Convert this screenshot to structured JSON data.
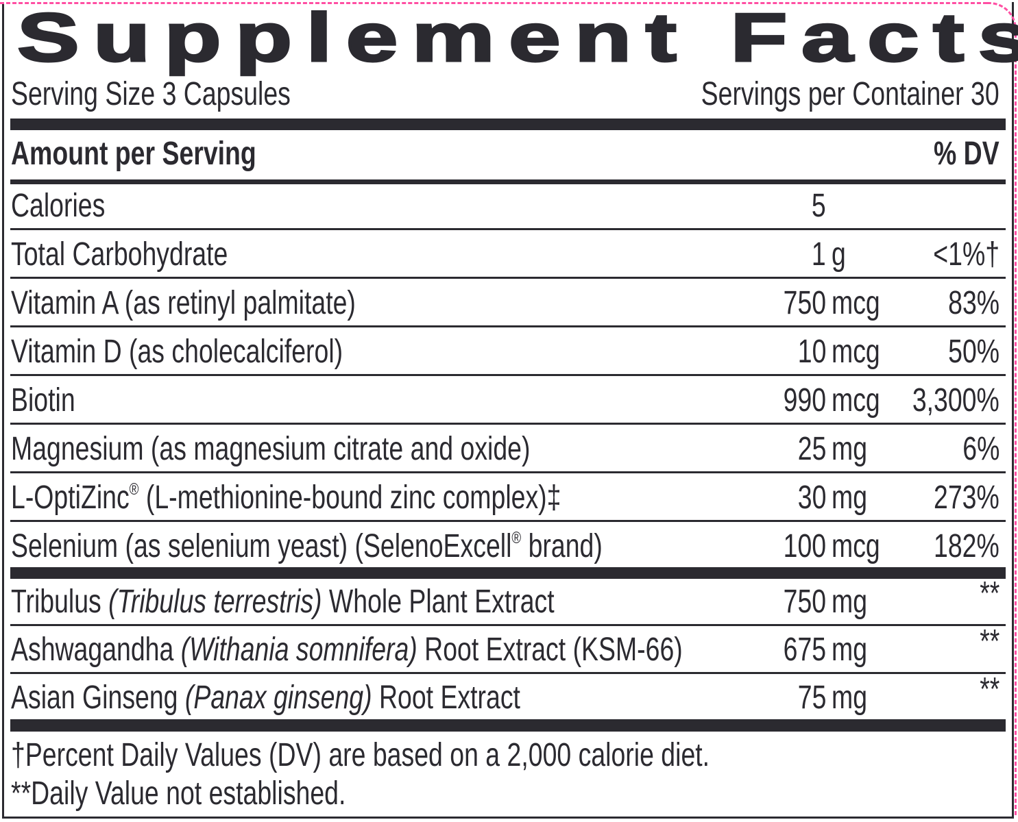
{
  "title": "Supplement Facts",
  "serving_size": "Serving Size 3 Capsules",
  "servings_per_container": "Servings per Container 30",
  "amount_header": "Amount per Serving",
  "dv_header": "% DV",
  "colors": {
    "ink": "#2b2a30",
    "dieline": "#ff4fa3"
  },
  "nutrients": [
    {
      "name": [
        {
          "t": "Calories"
        }
      ],
      "num": "5",
      "unit": "",
      "dv": ""
    },
    {
      "name": [
        {
          "t": "Total Carbohydrate"
        }
      ],
      "num": "1",
      "unit": "g",
      "dv": "<1%†"
    },
    {
      "name": [
        {
          "t": "Vitamin A (as retinyl palmitate)"
        }
      ],
      "num": "750",
      "unit": "mcg",
      "dv": "83%"
    },
    {
      "name": [
        {
          "t": "Vitamin D (as cholecalciferol)"
        }
      ],
      "num": "10",
      "unit": "mcg",
      "dv": "50%"
    },
    {
      "name": [
        {
          "t": "Biotin"
        }
      ],
      "num": "990",
      "unit": "mcg",
      "dv": "3,300%"
    },
    {
      "name": [
        {
          "t": "Magnesium (as magnesium citrate and oxide)"
        }
      ],
      "num": "25",
      "unit": "mg",
      "dv": "6%"
    },
    {
      "name": [
        {
          "t": "L-OptiZinc"
        },
        {
          "t": "®",
          "sup": true
        },
        {
          "t": " (L-methionine-bound zinc complex)‡"
        }
      ],
      "num": "30",
      "unit": "mg",
      "dv": "273%"
    },
    {
      "name": [
        {
          "t": "Selenium (as selenium yeast) (SelenoExcell"
        },
        {
          "t": "®",
          "sup": true
        },
        {
          "t": " brand)"
        }
      ],
      "num": "100",
      "unit": "mcg",
      "dv": "182%"
    }
  ],
  "botanicals": [
    {
      "name": [
        {
          "t": "Tribulus "
        },
        {
          "t": "(Tribulus terrestris)",
          "italic": true
        },
        {
          "t": " Whole Plant Extract"
        }
      ],
      "num": "750",
      "unit": "mg",
      "dv": "**"
    },
    {
      "name": [
        {
          "t": "Ashwagandha "
        },
        {
          "t": "(Withania somnifera)",
          "italic": true
        },
        {
          "t": " Root Extract (KSM-66)"
        }
      ],
      "num": "675",
      "unit": "mg",
      "dv": "**"
    },
    {
      "name": [
        {
          "t": "Asian Ginseng "
        },
        {
          "t": "(Panax ginseng)",
          "italic": true
        },
        {
          "t": " Root Extract"
        }
      ],
      "num": "75",
      "unit": "mg",
      "dv": "**"
    }
  ],
  "footnotes": [
    "†Percent Daily Values (DV) are based on a 2,000 calorie diet.",
    "**Daily Value not established."
  ]
}
